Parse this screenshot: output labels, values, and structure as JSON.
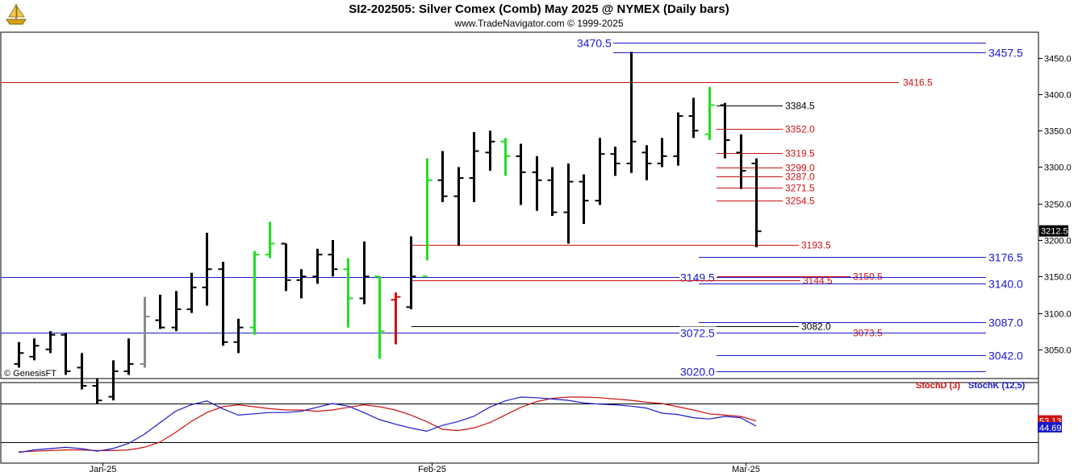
{
  "header": {
    "title": "SI2-202505:  Silver Comex (Comb) May 2025 @ NYMEX  (Daily bars)",
    "subtitle": "www.TradeNavigator.com © 1999-2025",
    "credit": "© GenesisFT"
  },
  "colors": {
    "blue": "#1a1acc",
    "red": "#cc1111",
    "black": "#000000",
    "green": "#22dd22",
    "gray": "#888888",
    "brightred": "#ee0000"
  },
  "chart_data": {
    "type": "ohlc",
    "price_axis": {
      "min": 3010,
      "max": 3485,
      "ticks": [
        3050.0,
        3100.0,
        3150.0,
        3200.0,
        3250.0,
        3300.0,
        3350.0,
        3400.0,
        3450.0
      ],
      "tick_labels": [
        "3050.0",
        "3100.0",
        "3150.0",
        "3200.0",
        "3250.0",
        "3300.0",
        "3350.0",
        "3400.0",
        "3450.0"
      ],
      "last_price_label": "3212.5",
      "last_price": 3212.5
    },
    "x_labels": [
      {
        "label": "Jan-25",
        "bar": 6
      },
      {
        "label": "Feb-25",
        "bar": 27
      },
      {
        "label": "Mar-25",
        "bar": 47
      }
    ],
    "bars": [
      {
        "o": 3030,
        "h": 3060,
        "l": 3025,
        "c": 3045,
        "color": "black"
      },
      {
        "o": 3040,
        "h": 3065,
        "l": 3035,
        "c": 3055,
        "color": "black"
      },
      {
        "o": 3050,
        "h": 3075,
        "l": 3045,
        "c": 3070,
        "color": "black"
      },
      {
        "o": 3070,
        "h": 3072,
        "l": 3015,
        "c": 3020,
        "color": "black"
      },
      {
        "o": 3025,
        "h": 3045,
        "l": 2995,
        "c": 3000,
        "color": "black"
      },
      {
        "o": 3000,
        "h": 3010,
        "l": 2975,
        "c": 2980,
        "color": "black"
      },
      {
        "o": 2985,
        "h": 3035,
        "l": 2980,
        "c": 3020,
        "color": "black"
      },
      {
        "o": 3020,
        "h": 3065,
        "l": 3015,
        "c": 3030,
        "color": "black"
      },
      {
        "o": 3030,
        "h": 3122,
        "l": 3025,
        "c": 3095,
        "color": "gray"
      },
      {
        "o": 3090,
        "h": 3125,
        "l": 3078,
        "c": 3080,
        "color": "black"
      },
      {
        "o": 3080,
        "h": 3130,
        "l": 3075,
        "c": 3105,
        "color": "black"
      },
      {
        "o": 3105,
        "h": 3155,
        "l": 3100,
        "c": 3135,
        "color": "black"
      },
      {
        "o": 3135,
        "h": 3210,
        "l": 3110,
        "c": 3160,
        "color": "black"
      },
      {
        "o": 3160,
        "h": 3170,
        "l": 3055,
        "c": 3060,
        "color": "black"
      },
      {
        "o": 3060,
        "h": 3092,
        "l": 3045,
        "c": 3080,
        "color": "black"
      },
      {
        "o": 3080,
        "h": 3185,
        "l": 3070,
        "c": 3180,
        "color": "green"
      },
      {
        "o": 3180,
        "h": 3225,
        "l": 3175,
        "c": 3195,
        "color": "green"
      },
      {
        "o": 3195,
        "h": 3195,
        "l": 3130,
        "c": 3145,
        "color": "black"
      },
      {
        "o": 3145,
        "h": 3160,
        "l": 3120,
        "c": 3150,
        "color": "black"
      },
      {
        "o": 3150,
        "h": 3188,
        "l": 3140,
        "c": 3180,
        "color": "black"
      },
      {
        "o": 3180,
        "h": 3200,
        "l": 3150,
        "c": 3160,
        "color": "black"
      },
      {
        "o": 3160,
        "h": 3175,
        "l": 3080,
        "c": 3120,
        "color": "green"
      },
      {
        "o": 3120,
        "h": 3198,
        "l": 3112,
        "c": 3150,
        "color": "black"
      },
      {
        "o": 3150,
        "h": 3150,
        "l": 3037,
        "c": 3075,
        "color": "green"
      },
      {
        "o": 3118,
        "h": 3128,
        "l": 3057,
        "c": 3122,
        "color": "red"
      },
      {
        "o": 3108,
        "h": 3205,
        "l": 3105,
        "c": 3150,
        "color": "black"
      },
      {
        "o": 3150,
        "h": 3312,
        "l": 3172,
        "c": 3282,
        "color": "green"
      },
      {
        "o": 3282,
        "h": 3322,
        "l": 3252,
        "c": 3260,
        "color": "black"
      },
      {
        "o": 3260,
        "h": 3300,
        "l": 3192,
        "c": 3285,
        "color": "black"
      },
      {
        "o": 3285,
        "h": 3348,
        "l": 3252,
        "c": 3322,
        "color": "black"
      },
      {
        "o": 3320,
        "h": 3350,
        "l": 3295,
        "c": 3335,
        "color": "black"
      },
      {
        "o": 3335,
        "h": 3340,
        "l": 3288,
        "c": 3315,
        "color": "green"
      },
      {
        "o": 3315,
        "h": 3332,
        "l": 3248,
        "c": 3293,
        "color": "black"
      },
      {
        "o": 3293,
        "h": 3315,
        "l": 3240,
        "c": 3282,
        "color": "black"
      },
      {
        "o": 3282,
        "h": 3300,
        "l": 3233,
        "c": 3238,
        "color": "black"
      },
      {
        "o": 3238,
        "h": 3305,
        "l": 3195,
        "c": 3280,
        "color": "black"
      },
      {
        "o": 3280,
        "h": 3290,
        "l": 3222,
        "c": 3254,
        "color": "black"
      },
      {
        "o": 3254,
        "h": 3340,
        "l": 3248,
        "c": 3318,
        "color": "black"
      },
      {
        "o": 3318,
        "h": 3328,
        "l": 3288,
        "c": 3305,
        "color": "black"
      },
      {
        "o": 3305,
        "h": 3458,
        "l": 3292,
        "c": 3335,
        "color": "black"
      },
      {
        "o": 3320,
        "h": 3330,
        "l": 3282,
        "c": 3305,
        "color": "black"
      },
      {
        "o": 3305,
        "h": 3340,
        "l": 3300,
        "c": 3315,
        "color": "black"
      },
      {
        "o": 3315,
        "h": 3375,
        "l": 3302,
        "c": 3370,
        "color": "black"
      },
      {
        "o": 3370,
        "h": 3395,
        "l": 3340,
        "c": 3350,
        "color": "black"
      },
      {
        "o": 3345,
        "h": 3410,
        "l": 3337,
        "c": 3385,
        "color": "green"
      },
      {
        "o": 3385,
        "h": 3388,
        "l": 3312,
        "c": 3337,
        "color": "black"
      },
      {
        "o": 3320,
        "h": 3345,
        "l": 3270,
        "c": 3295,
        "color": "black"
      },
      {
        "o": 3305,
        "h": 3312,
        "l": 3190,
        "c": 3212,
        "color": "black"
      }
    ],
    "levels": [
      {
        "label": "3470.5",
        "value": 3470.5,
        "color": "blue",
        "style": "line"
      },
      {
        "label": "3457.5",
        "value": 3457.5,
        "color": "blue",
        "style": "line"
      },
      {
        "label": "3416.5",
        "value": 3416.5,
        "color": "red",
        "style": "line"
      },
      {
        "label": "3384.5",
        "value": 3384.5,
        "color": "black",
        "style": "line"
      },
      {
        "label": "3352.0",
        "value": 3352.0,
        "color": "red",
        "style": "line"
      },
      {
        "label": "3319.5",
        "value": 3319.5,
        "color": "red",
        "style": "line"
      },
      {
        "label": "3299.0",
        "value": 3299.0,
        "color": "red",
        "style": "line"
      },
      {
        "label": "3287.0",
        "value": 3287.0,
        "color": "red",
        "style": "line"
      },
      {
        "label": "3271.5",
        "value": 3271.5,
        "color": "red",
        "style": "line"
      },
      {
        "label": "3254.5",
        "value": 3254.5,
        "color": "red",
        "style": "line"
      },
      {
        "label": "3193.5",
        "value": 3193.5,
        "color": "red",
        "style": "line"
      },
      {
        "label": "3176.5",
        "value": 3176.5,
        "color": "blue",
        "style": "line"
      },
      {
        "label": "3150.5",
        "value": 3150.5,
        "color": "red",
        "style": "line"
      },
      {
        "label": "3149.5",
        "value": 3149.5,
        "color": "blue",
        "style": "line"
      },
      {
        "label": "3144.5",
        "value": 3144.5,
        "color": "red",
        "style": "line"
      },
      {
        "label": "3140.0",
        "value": 3140.0,
        "color": "blue",
        "style": "line"
      },
      {
        "label": "3087.0",
        "value": 3087.0,
        "color": "blue",
        "style": "line"
      },
      {
        "label": "3082.0",
        "value": 3082.0,
        "color": "black",
        "style": "line"
      },
      {
        "label": "3073.5",
        "value": 3073.5,
        "color": "red",
        "style": "line"
      },
      {
        "label": "3072.5",
        "value": 3072.5,
        "color": "blue",
        "style": "line"
      },
      {
        "label": "3042.0",
        "value": 3042.0,
        "color": "blue",
        "style": "line"
      },
      {
        "label": "3020.0",
        "value": 3020.0,
        "color": "blue",
        "style": "line"
      }
    ],
    "stochastic": {
      "legend_d": "StochD (3)",
      "legend_k": "StochK (12,5)",
      "last_d_label": "53.13",
      "last_k_label": "44.69",
      "upper_band": 80,
      "lower_band": 20,
      "stoch_d": [
        5,
        6,
        7,
        8,
        8,
        7,
        7,
        8,
        12,
        20,
        35,
        52,
        66,
        75,
        78,
        75,
        72,
        70,
        70,
        68,
        70,
        74,
        78,
        75,
        70,
        62,
        52,
        40,
        38,
        42,
        50,
        62,
        74,
        83,
        88,
        90,
        90,
        89,
        87,
        85,
        82,
        80,
        75,
        70,
        64,
        62,
        60,
        53
      ],
      "stoch_k": [
        4,
        8,
        10,
        12,
        10,
        6,
        10,
        18,
        32,
        50,
        68,
        78,
        84,
        72,
        62,
        64,
        66,
        66,
        68,
        74,
        80,
        76,
        66,
        55,
        48,
        42,
        37,
        46,
        52,
        60,
        74,
        84,
        90,
        89,
        87,
        85,
        81,
        79,
        78,
        76,
        73,
        65,
        63,
        58,
        56,
        60,
        58,
        45
      ]
    }
  }
}
